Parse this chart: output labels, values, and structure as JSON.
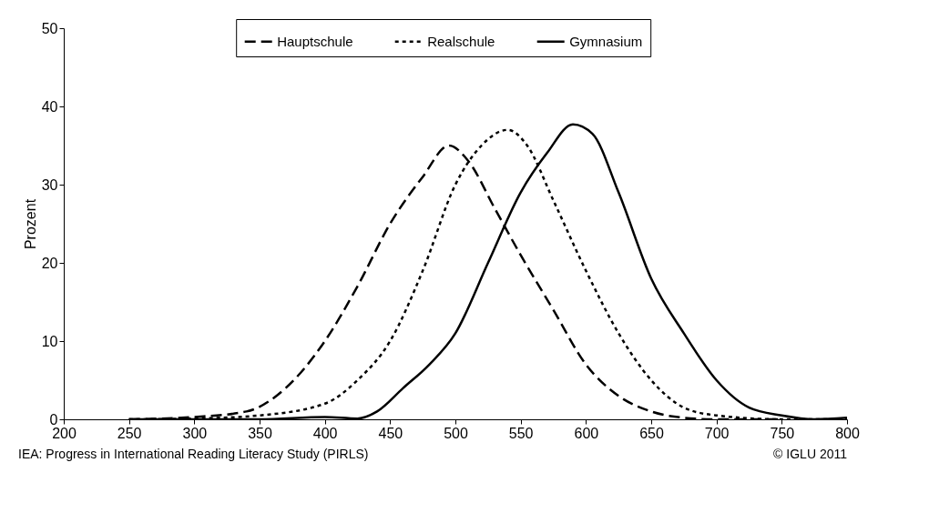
{
  "chart_data": {
    "type": "line",
    "ylabel": "Prozent",
    "xlim": [
      200,
      800
    ],
    "xticks": [
      200,
      250,
      300,
      350,
      400,
      450,
      500,
      550,
      600,
      650,
      700,
      750,
      800
    ],
    "ylim": [
      0,
      50
    ],
    "yticks": [
      0,
      10,
      20,
      30,
      40,
      50
    ],
    "grid": false,
    "legend": "top",
    "marker": "none",
    "series": [
      {
        "name": "Hauptschule",
        "color": "#000000",
        "line_style": "dashed",
        "x": [
          250,
          300,
          340,
          370,
          400,
          425,
          450,
          475,
          495,
          510,
          530,
          550,
          575,
          600,
          625,
          650,
          675,
          700,
          750
        ],
        "values": [
          0,
          0.3,
          1,
          4,
          10,
          17,
          25,
          31,
          35,
          33,
          27,
          21,
          14,
          7,
          3,
          1,
          0.2,
          0,
          0
        ]
      },
      {
        "name": "Realschule",
        "color": "#000000",
        "line_style": "dotted",
        "x": [
          250,
          300,
          350,
          400,
          425,
          450,
          475,
          500,
          520,
          540,
          555,
          575,
          600,
          625,
          650,
          675,
          700,
          750,
          800
        ],
        "values": [
          0,
          0.1,
          0.5,
          2,
          5,
          10,
          19,
          30,
          35,
          37,
          35,
          28,
          19,
          11,
          5,
          1.5,
          0.5,
          0,
          0
        ]
      },
      {
        "name": "Gymnasium",
        "color": "#000000",
        "line_style": "solid",
        "x": [
          250,
          350,
          400,
          425,
          440,
          460,
          480,
          500,
          525,
          550,
          570,
          590,
          605,
          625,
          650,
          675,
          700,
          725,
          750,
          775,
          800
        ],
        "values": [
          0,
          0,
          0.3,
          0.1,
          1,
          4,
          7,
          11,
          20,
          29,
          34,
          37.7,
          36.5,
          29,
          18,
          11,
          5,
          1.5,
          0.5,
          0,
          0.2
        ]
      }
    ],
    "annotations": [
      "IEA: Progress in International Reading Literacy Study (PIRLS)",
      "© IGLU 2011"
    ]
  }
}
